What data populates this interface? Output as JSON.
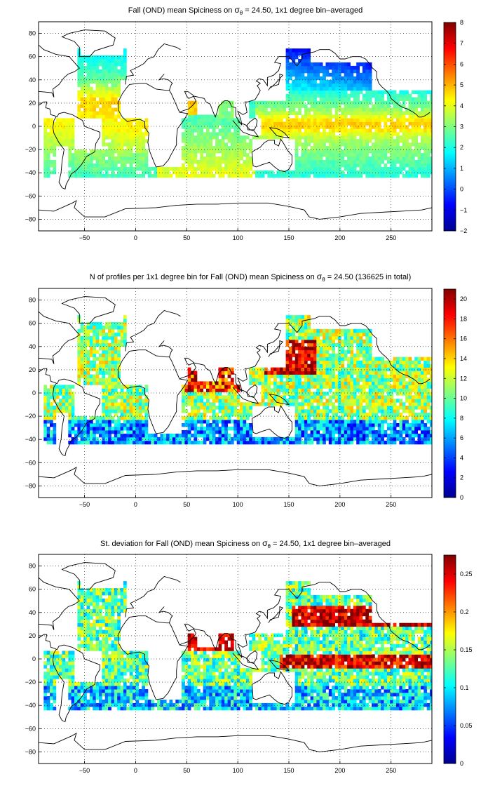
{
  "figure": {
    "panels": [
      {
        "title_main": "Fall (OND) mean Spiciness on ",
        "title_sigma": "σ",
        "title_sub": "θ",
        "title_rest": " = 24.50, 1x1 degree bin–averaged",
        "colorbar_ticks": [
          "8",
          "7",
          "6",
          "5",
          "4",
          "3",
          "2",
          "1",
          "0",
          "−1",
          "−2"
        ]
      },
      {
        "title_main": "N of profiles per 1x1 degree bin for Fall (OND) mean Spiciness on ",
        "title_sigma": "σ",
        "title_sub": "θ",
        "title_rest": " = 24.50 (136625 in total)",
        "colorbar_ticks": [
          "20",
          "18",
          "16",
          "14",
          "12",
          "10",
          "8",
          "6",
          "4",
          "2",
          "0"
        ]
      },
      {
        "title_main": "St. deviation for Fall (OND) mean Spiciness on ",
        "title_sigma": "σ",
        "title_sub": "θ",
        "title_rest": " = 24.50, 1x1 degree bin–averaged",
        "colorbar_ticks": [
          "0.25",
          "0.2",
          "0.15",
          "0.1",
          "0.05",
          "0"
        ]
      }
    ]
  },
  "chart_data": [
    {
      "type": "heatmap",
      "title": "Fall (OND) mean Spiciness on σθ = 24.50, 1x1 degree bin–averaged",
      "x_ticks": [
        -50,
        0,
        50,
        100,
        150,
        200,
        250
      ],
      "y_ticks": [
        80,
        60,
        40,
        20,
        0,
        -20,
        -40,
        -60,
        -80
      ],
      "xlim": [
        -95,
        290
      ],
      "ylim": [
        -90,
        90
      ],
      "colorbar": {
        "min": -2,
        "max": 8,
        "ticks": [
          8,
          7,
          6,
          5,
          4,
          3,
          2,
          1,
          0,
          -1,
          -2
        ],
        "colormap": "jet"
      },
      "grid": true
    },
    {
      "type": "heatmap",
      "title": "N of profiles per 1x1 degree bin for Fall (OND) mean Spiciness on σθ = 24.50 (136625 in total)",
      "x_ticks": [
        -50,
        0,
        50,
        100,
        150,
        200,
        250
      ],
      "y_ticks": [
        80,
        60,
        40,
        20,
        0,
        -20,
        -40,
        -60,
        -80
      ],
      "xlim": [
        -95,
        290
      ],
      "ylim": [
        -90,
        90
      ],
      "total_profiles": 136625,
      "colorbar": {
        "min": 0,
        "max": 21,
        "ticks": [
          20,
          18,
          16,
          14,
          12,
          10,
          8,
          6,
          4,
          2,
          0
        ],
        "colormap": "jet"
      },
      "grid": true
    },
    {
      "type": "heatmap",
      "title": "St. deviation for Fall (OND) mean Spiciness on σθ = 24.50, 1x1 degree bin–averaged",
      "x_ticks": [
        -50,
        0,
        50,
        100,
        150,
        200,
        250
      ],
      "y_ticks": [
        80,
        60,
        40,
        20,
        0,
        -20,
        -40,
        -60,
        -80
      ],
      "xlim": [
        -95,
        290
      ],
      "ylim": [
        -90,
        90
      ],
      "colorbar": {
        "min": 0,
        "max": 0.275,
        "ticks": [
          0.25,
          0.2,
          0.15,
          0.1,
          0.05,
          0
        ],
        "colormap": "jet"
      },
      "grid": true
    }
  ]
}
